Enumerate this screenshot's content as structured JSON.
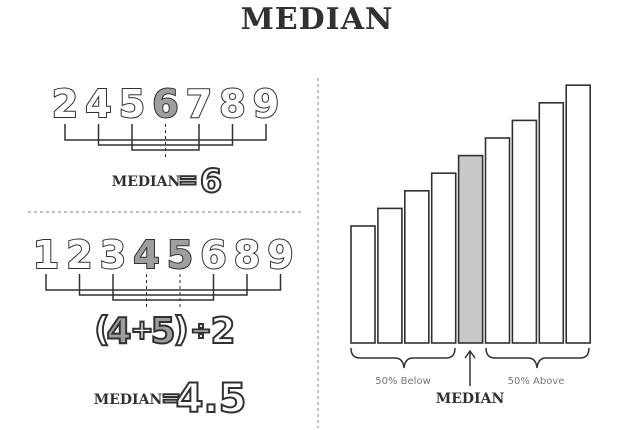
{
  "title": "MEDIAN",
  "example1": {
    "digits": [
      "2",
      "4",
      "5",
      "6",
      "7",
      "8",
      "9"
    ],
    "median_index": 3,
    "label": "MEDIAN",
    "equals": "=",
    "result": "6"
  },
  "example2": {
    "digits": [
      "1",
      "2",
      "3",
      "4",
      "5",
      "6",
      "8",
      "9"
    ],
    "median_indices": [
      3,
      4
    ],
    "formula": {
      "open": "(",
      "a": "4",
      "plus": "+",
      "b": "5",
      "close": ")",
      "div": "÷",
      "d": "2"
    },
    "label": "MEDIAN",
    "equals": "=",
    "result": "4.5"
  },
  "bar_chart": {
    "bar_values": [
      5,
      6,
      7,
      8,
      9,
      10,
      11,
      12,
      13
    ],
    "median_index": 4,
    "colors": {
      "normal": "#ffffff",
      "median": "#c9c9c9",
      "ink": "#333030"
    },
    "below_label": "50% Below",
    "above_label": "50% Above",
    "median_label": "MEDIAN"
  }
}
